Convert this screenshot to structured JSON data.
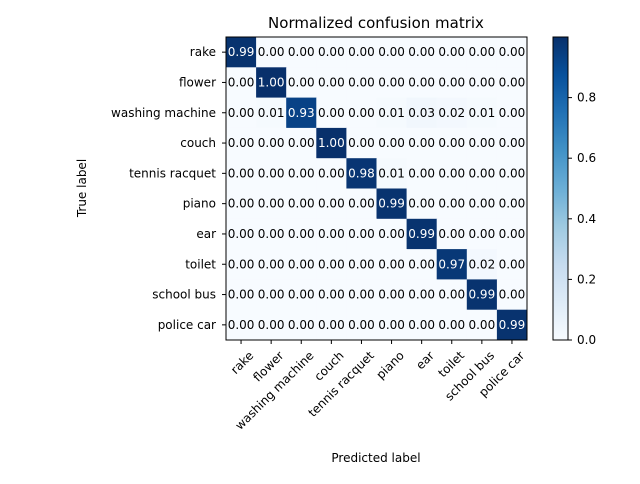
{
  "chart_data": {
    "type": "heatmap",
    "title": "Normalized confusion matrix",
    "xlabel": "Predicted label",
    "ylabel": "True label",
    "labels": [
      "rake",
      "flower",
      "washing machine",
      "couch",
      "tennis racquet",
      "piano",
      "ear",
      "toilet",
      "school bus",
      "police car"
    ],
    "matrix": [
      [
        0.99,
        0.0,
        0.0,
        0.0,
        0.0,
        0.0,
        0.0,
        0.0,
        0.0,
        0.0
      ],
      [
        0.0,
        1.0,
        0.0,
        0.0,
        0.0,
        0.0,
        0.0,
        0.0,
        0.0,
        0.0
      ],
      [
        0.0,
        0.01,
        0.93,
        0.0,
        0.0,
        0.01,
        0.03,
        0.02,
        0.01,
        0.0
      ],
      [
        0.0,
        0.0,
        0.0,
        1.0,
        0.0,
        0.0,
        0.0,
        0.0,
        0.0,
        0.0
      ],
      [
        0.0,
        0.0,
        0.0,
        0.0,
        0.98,
        0.01,
        0.0,
        0.0,
        0.0,
        0.0
      ],
      [
        0.0,
        0.0,
        0.0,
        0.0,
        0.0,
        0.99,
        0.0,
        0.0,
        0.0,
        0.0
      ],
      [
        0.0,
        0.0,
        0.0,
        0.0,
        0.0,
        0.0,
        0.99,
        0.0,
        0.0,
        0.0
      ],
      [
        0.0,
        0.0,
        0.0,
        0.0,
        0.0,
        0.0,
        0.0,
        0.97,
        0.02,
        0.0
      ],
      [
        0.0,
        0.0,
        0.0,
        0.0,
        0.0,
        0.0,
        0.0,
        0.0,
        0.99,
        0.0
      ],
      [
        0.0,
        0.0,
        0.0,
        0.0,
        0.0,
        0.0,
        0.0,
        0.0,
        0.0,
        0.99
      ]
    ],
    "colorbar": {
      "range": [
        0.0,
        1.0
      ],
      "ticks": [
        0.0,
        0.2,
        0.4,
        0.6,
        0.8
      ],
      "tick_labels": [
        "0.0",
        "0.2",
        "0.4",
        "0.6",
        "0.8"
      ],
      "colormap": "Blues"
    },
    "grid": false
  }
}
